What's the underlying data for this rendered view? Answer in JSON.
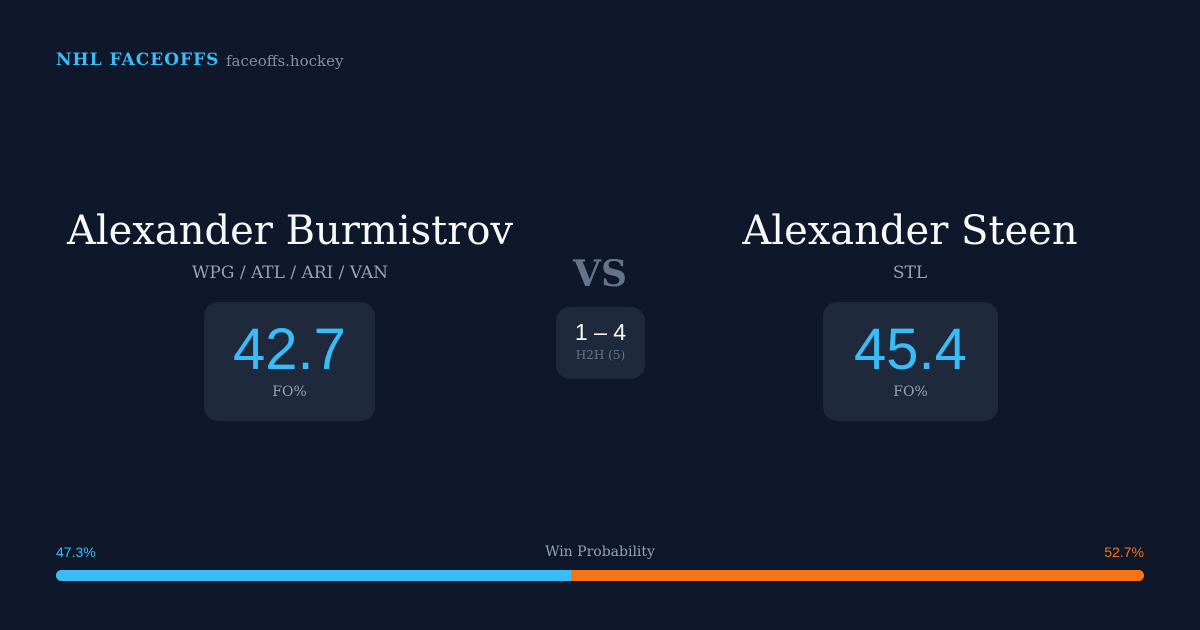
{
  "header": {
    "brand": "NHL FACEOFFS",
    "site": "faceoffs.hockey"
  },
  "player1": {
    "name": "Alexander Burmistrov",
    "teams": "WPG / ATL / ARI / VAN",
    "fo_pct": "42.7",
    "fo_label": "FO%"
  },
  "player2": {
    "name": "Alexander Steen",
    "teams": "STL",
    "fo_pct": "45.4",
    "fo_label": "FO%"
  },
  "vs": "VS",
  "h2h": {
    "score": "1 – 4",
    "label": "H2H (5)"
  },
  "win_probability": {
    "label": "Win Probability",
    "p1": "47.3%",
    "p2": "52.7%",
    "p1_value": 47.3,
    "p2_value": 52.7
  },
  "colors": {
    "background": "#0f172a",
    "card": "#1e293b",
    "player1": "#38bdf8",
    "player2": "#f97316"
  }
}
